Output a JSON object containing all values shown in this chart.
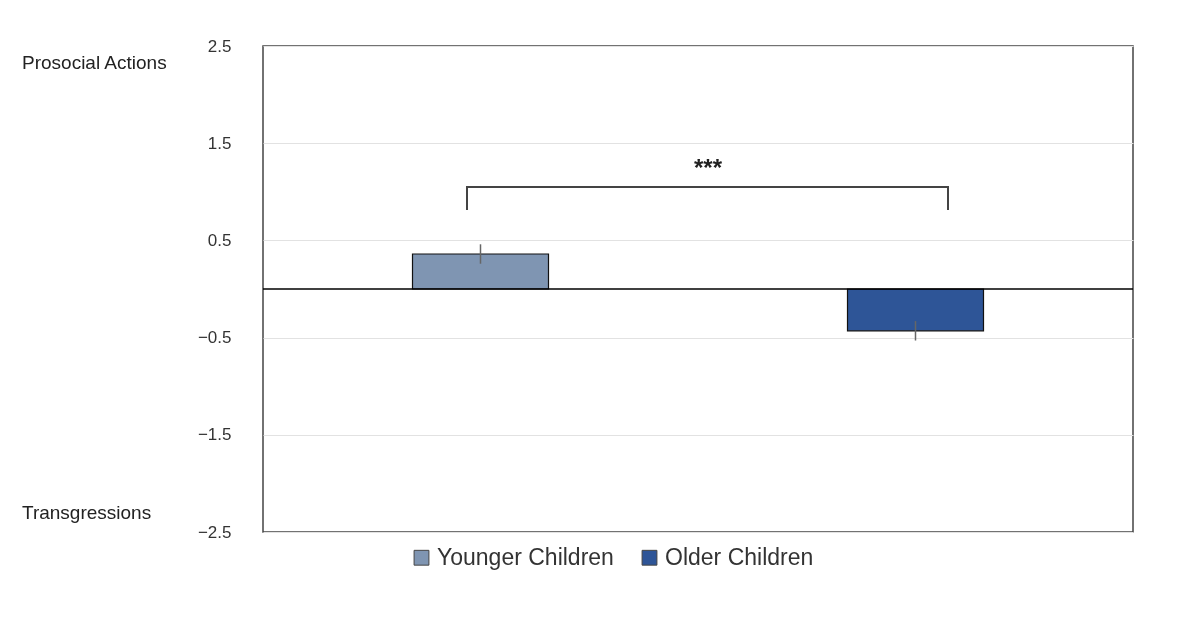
{
  "chart_data": {
    "type": "bar",
    "categories": [
      null,
      null
    ],
    "series": [
      {
        "name": "Younger Children",
        "color": "#7f95b2",
        "values": [
          0.36,
          null
        ],
        "errors": [
          0.1,
          null
        ]
      },
      {
        "name": "Older Children",
        "color": "#2e5597",
        "values": [
          null,
          -0.43
        ],
        "errors": [
          null,
          0.1
        ]
      }
    ],
    "ylim": [
      -2.5,
      2.5
    ],
    "yticks": [
      2.5,
      1.5,
      0.5,
      -0.5,
      -1.5,
      -2.5
    ],
    "grid": "y",
    "legend": "bottom",
    "ref_lines": [
      {
        "axis": "y",
        "value": 0,
        "color": "#000000"
      }
    ],
    "annotations": [
      "Prosocial Actions",
      "Transgressions",
      "***"
    ]
  }
}
